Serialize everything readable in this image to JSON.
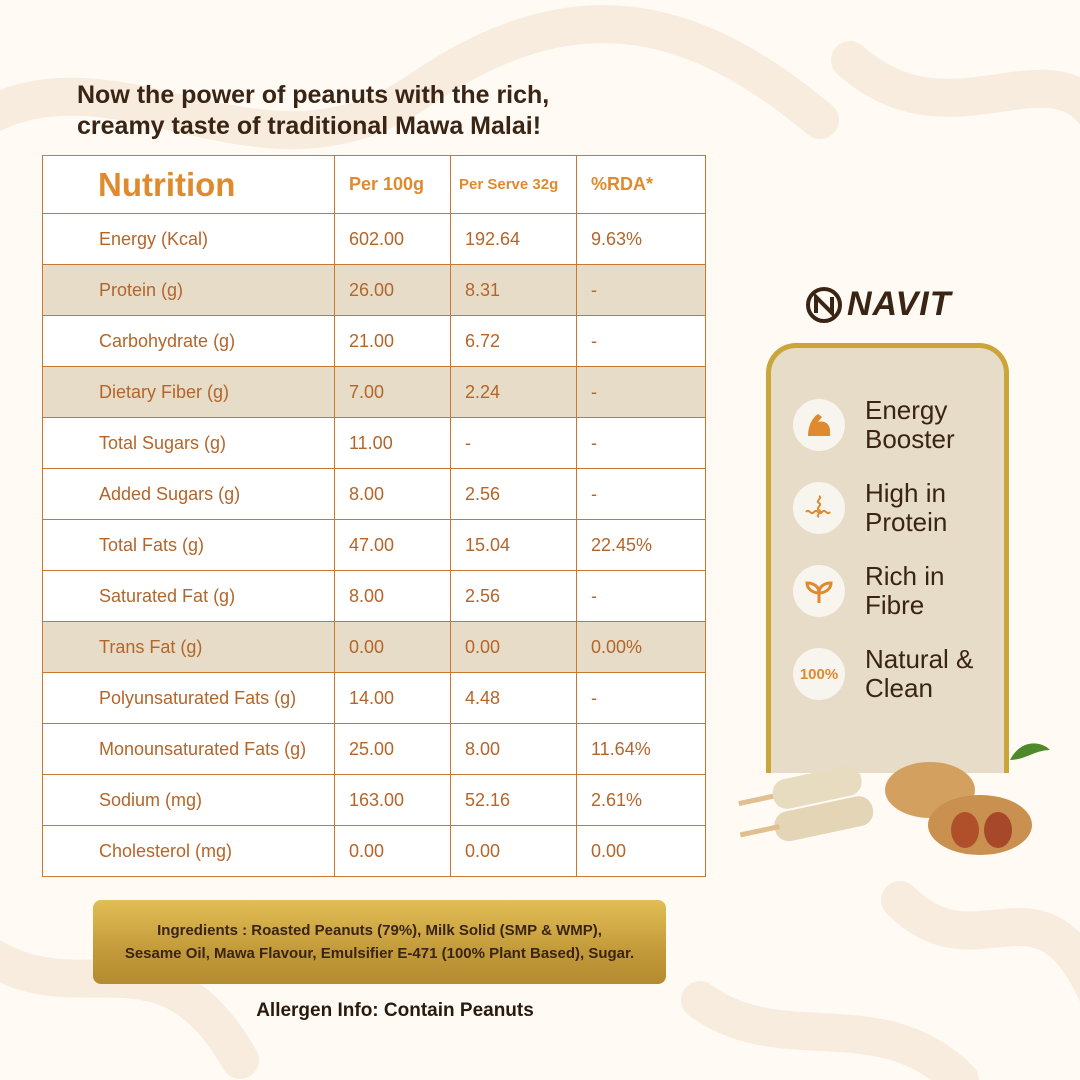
{
  "headline": [
    "Now the power of peanuts with the rich,",
    "creamy taste of traditional Mawa Malai!"
  ],
  "table": {
    "headers": [
      "Nutrition",
      "Per 100g",
      "Per Serve 32g",
      "%RDA*"
    ],
    "rows": [
      {
        "name": "Energy (Kcal)",
        "per100": "602.00",
        "perServe": "192.64",
        "rda": "9.63%",
        "shaded": false
      },
      {
        "name": "Protein (g)",
        "per100": "26.00",
        "perServe": "8.31",
        "rda": "-",
        "shaded": true
      },
      {
        "name": "Carbohydrate (g)",
        "per100": "21.00",
        "perServe": "6.72",
        "rda": "-",
        "shaded": false
      },
      {
        "name": "Dietary Fiber (g)",
        "per100": "7.00",
        "perServe": "2.24",
        "rda": "-",
        "shaded": true
      },
      {
        "name": "Total Sugars (g)",
        "per100": "11.00",
        "perServe": "-",
        "rda": "-",
        "shaded": false
      },
      {
        "name": "Added Sugars (g)",
        "per100": "8.00",
        "perServe": "2.56",
        "rda": "-",
        "shaded": false
      },
      {
        "name": "Total Fats (g)",
        "per100": "47.00",
        "perServe": "15.04",
        "rda": "22.45%",
        "shaded": false
      },
      {
        "name": "Saturated Fat (g)",
        "per100": "8.00",
        "perServe": "2.56",
        "rda": "-",
        "shaded": false
      },
      {
        "name": "Trans Fat (g)",
        "per100": "0.00",
        "perServe": "0.00",
        "rda": "0.00%",
        "shaded": true
      },
      {
        "name": "Polyunsaturated Fats (g)",
        "per100": "14.00",
        "perServe": "4.48",
        "rda": "-",
        "shaded": false
      },
      {
        "name": "Monounsaturated Fats (g)",
        "per100": "25.00",
        "perServe": "8.00",
        "rda": "11.64%",
        "shaded": false
      },
      {
        "name": "Sodium (mg)",
        "per100": "163.00",
        "perServe": "52.16",
        "rda": "2.61%",
        "shaded": false
      },
      {
        "name": "Cholesterol (mg)",
        "per100": "0.00",
        "perServe": "0.00",
        "rda": "0.00",
        "shaded": false
      }
    ]
  },
  "brand": "NAVIT",
  "features": [
    {
      "icon": "muscle-icon",
      "label": "Energy Booster"
    },
    {
      "icon": "protein-helix-icon",
      "label": "High in Protein"
    },
    {
      "icon": "leaf-sprout-icon",
      "label": "Rich in Fibre"
    },
    {
      "icon": "hundred-percent-icon",
      "label": "Natural & Clean",
      "icon_text": "100%"
    }
  ],
  "ingredients": [
    "Ingredients : Roasted Peanuts (79%), Milk Solid (SMP & WMP),",
    "Sesame Oil, Mawa Flavour, Emulsifier E-471 (100% Plant Based), Sugar."
  ],
  "allergen": "Allergen Info: Contain Peanuts",
  "colors": {
    "accent": "#df8a2e",
    "text_dark": "#3a2414",
    "shade": "#e6dcc7",
    "border": "#c9772d",
    "gold": "#c9a53a"
  }
}
